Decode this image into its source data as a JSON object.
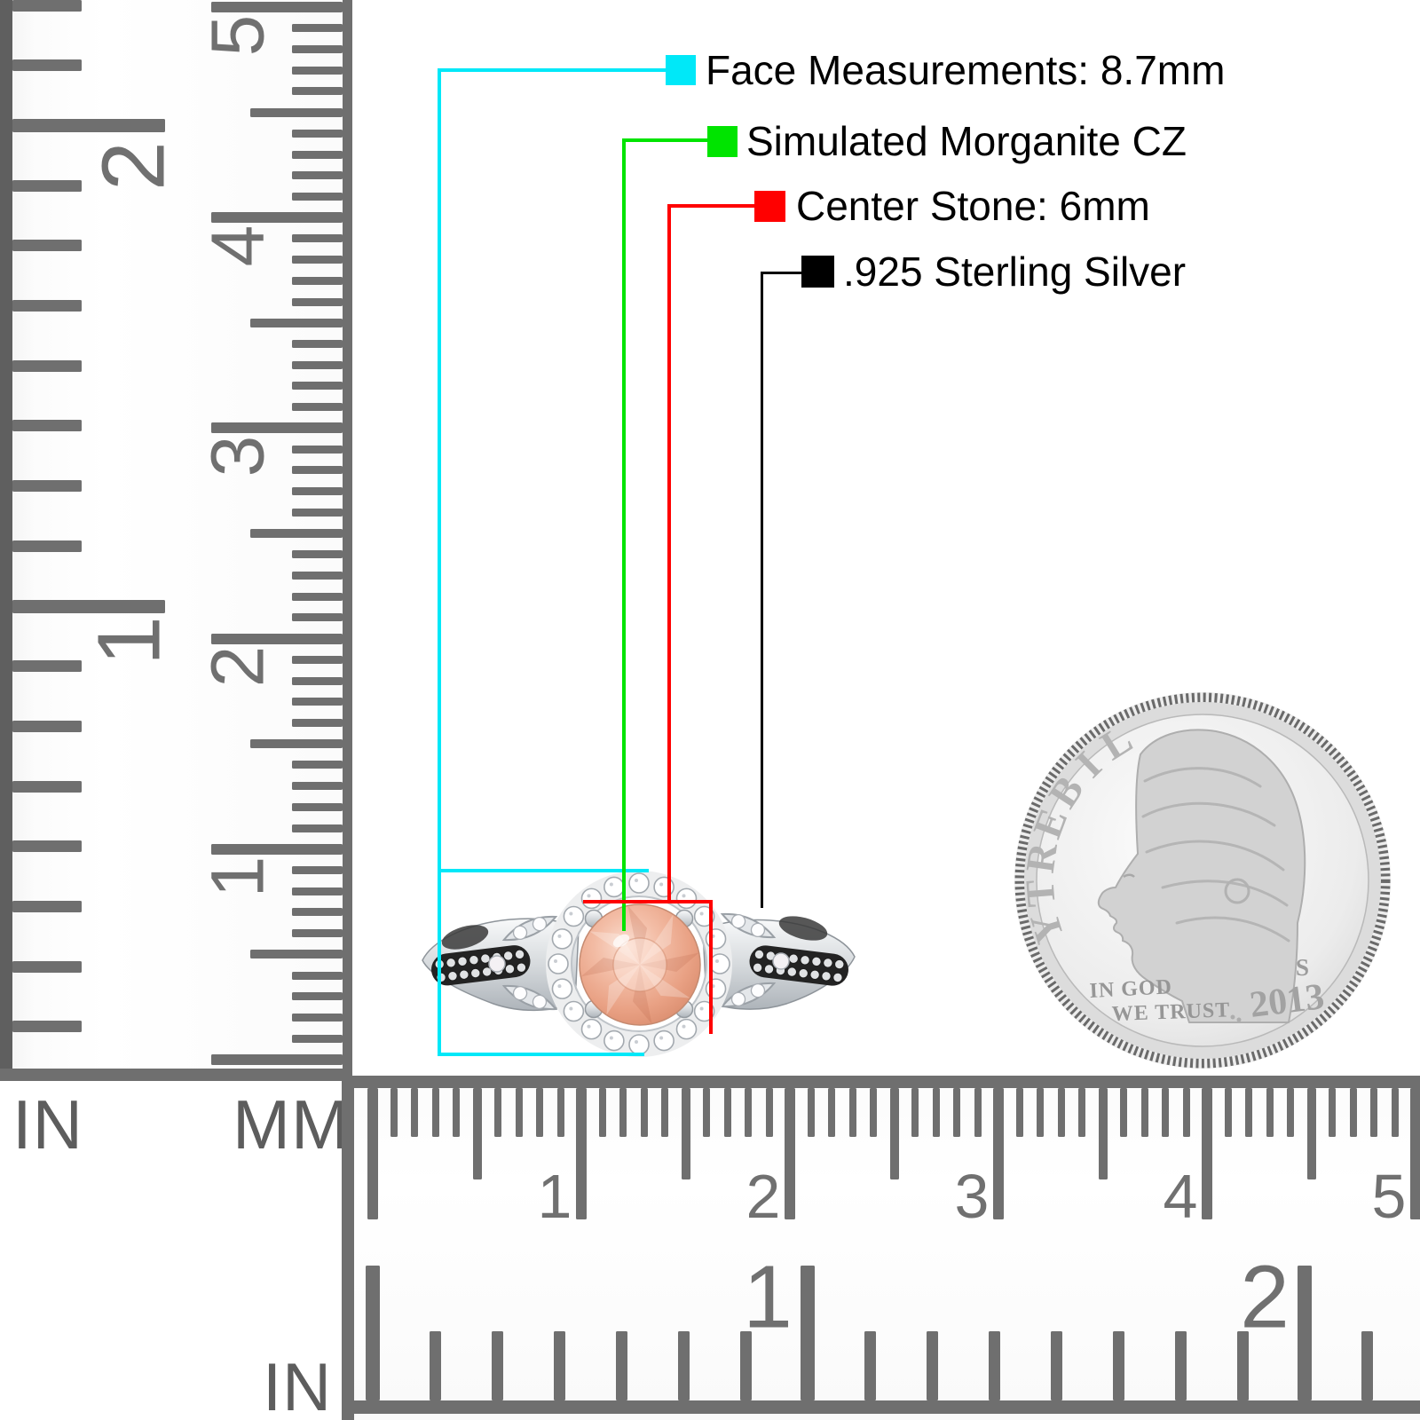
{
  "annotations": {
    "items": [
      {
        "label": "Face Measurements: 8.7mm",
        "color": "#00E8F8"
      },
      {
        "label": "Simulated Morganite CZ",
        "color": "#00E400"
      },
      {
        "label": "Center Stone: 6mm",
        "color": "#FF0000"
      },
      {
        "label": ".925 Sterling Silver",
        "color": "#000000"
      }
    ]
  },
  "rulers": {
    "left": {
      "unit_inch": "IN",
      "unit_mm": "MM",
      "inch_numbers": [
        "2",
        "1"
      ],
      "cm_numbers": [
        "5",
        "4",
        "3",
        "2",
        "1"
      ]
    },
    "bottom": {
      "unit_inch": "IN",
      "cm_numbers": [
        "1",
        "2",
        "3",
        "4",
        "5"
      ],
      "inch_numbers": [
        "1",
        "2"
      ]
    }
  },
  "coin": {
    "legend": "LIBERTY",
    "motto_line1": "IN GOD",
    "motto_line2": "WE TRUST",
    "year": "2013",
    "mint_mark": "S"
  },
  "ring": {
    "center_stone_color": "#EDA284",
    "halo_stone_color": "#FFFFFF",
    "metal_color": "#DEE2E5"
  }
}
